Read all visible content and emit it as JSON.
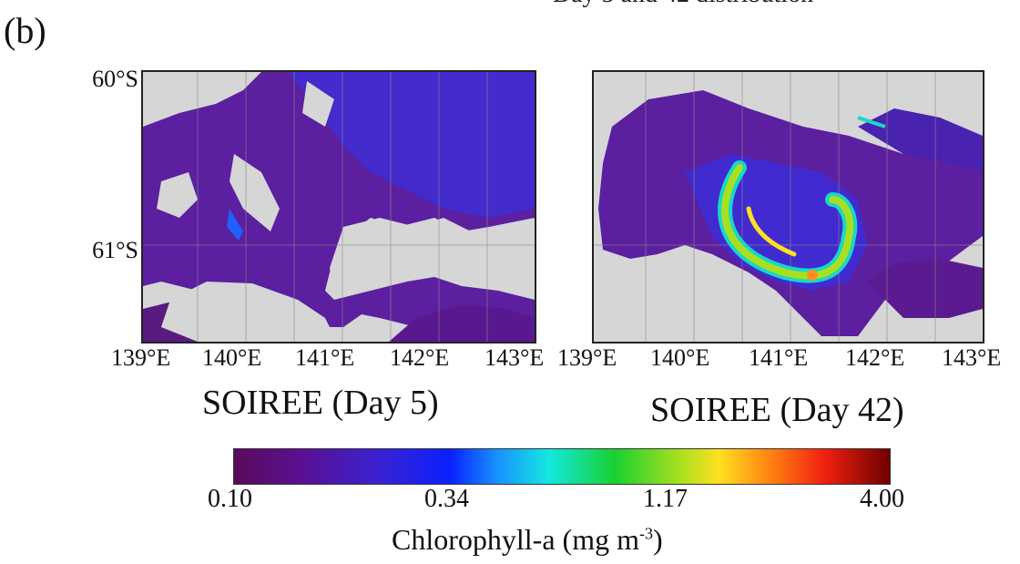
{
  "panel_label": "(b)",
  "colors": {
    "land_or_cloud": "#d6d6d6",
    "low_chl": "#5a1a8c",
    "mid_chl": "#3a2ad8",
    "high_chl": "#ffe020"
  },
  "maps": [
    {
      "id": "left",
      "caption": "SOIREE (Day 5)",
      "lat_labels": [
        "60°S",
        "61°S"
      ],
      "lon_labels": [
        "139°E",
        "140°E",
        "141°E",
        "142°E",
        "143°E"
      ]
    },
    {
      "id": "right",
      "caption": "SOIREE (Day 42)",
      "lon_labels": [
        "139°E",
        "140°E",
        "141°E",
        "142°E",
        "143°E"
      ]
    }
  ],
  "colorbar": {
    "ticks": [
      "0.10",
      "0.34",
      "1.17",
      "4.00"
    ],
    "label": "Chlorophyll-a (mg m",
    "label_superscript": "-3",
    "label_suffix": ")"
  }
}
